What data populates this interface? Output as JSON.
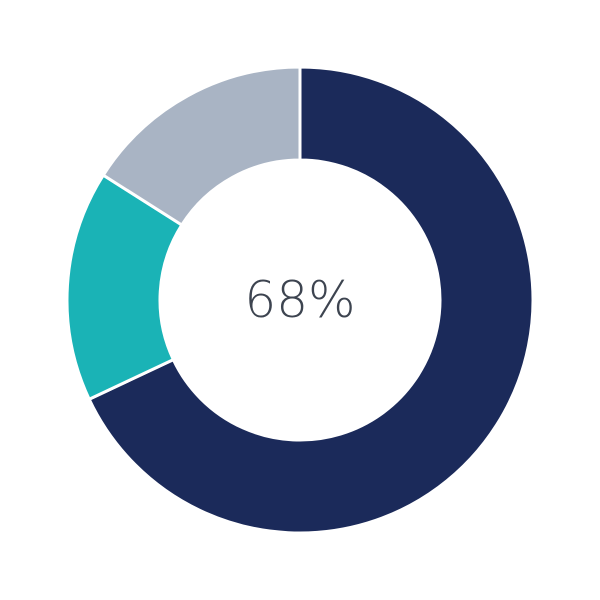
{
  "chart_data": {
    "type": "pie",
    "variant": "donut",
    "center_label": "68%",
    "slices": [
      {
        "value": 68,
        "color": "#1b2a5a"
      },
      {
        "value": 16,
        "color": "#1ab3b6"
      },
      {
        "value": 16,
        "color": "#a9b4c4"
      }
    ],
    "start_angle": "top",
    "direction": "clockwise"
  }
}
